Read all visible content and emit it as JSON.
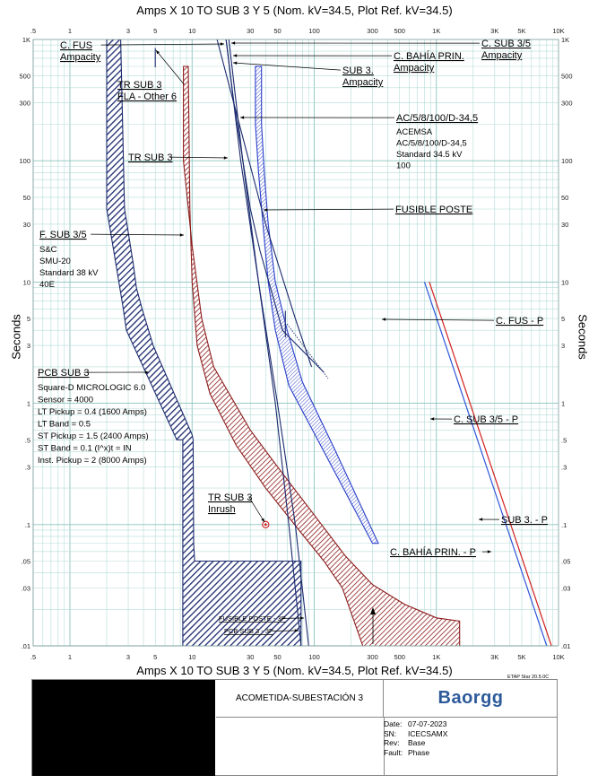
{
  "chart_data": {
    "type": "line",
    "title": "Amps  X  10   TO SUB 3 Y 5 (Nom. kV=34.5, Plot Ref. kV=34.5)",
    "xlabel": "Amps  X  10   TO SUB 3 Y 5 (Nom. kV=34.5, Plot Ref. kV=34.5)",
    "ylabel": "Seconds",
    "xscale": "log",
    "yscale": "log",
    "xlim": [
      0.5,
      10000
    ],
    "ylim": [
      0.01,
      1000
    ],
    "grid": true,
    "x_ticks": [
      {
        "v": 0.5,
        "label": ".5"
      },
      {
        "v": 1,
        "label": "1"
      },
      {
        "v": 3,
        "label": "3"
      },
      {
        "v": 5,
        "label": "5"
      },
      {
        "v": 10,
        "label": "10"
      },
      {
        "v": 30,
        "label": "30"
      },
      {
        "v": 50,
        "label": "50"
      },
      {
        "v": 100,
        "label": "100"
      },
      {
        "v": 300,
        "label": "300"
      },
      {
        "v": 500,
        "label": "500"
      },
      {
        "v": 1000,
        "label": "1K"
      },
      {
        "v": 3000,
        "label": "3K"
      },
      {
        "v": 5000,
        "label": "5K"
      },
      {
        "v": 10000,
        "label": "10K"
      }
    ],
    "y_ticks": [
      {
        "v": 1000,
        "label": "1K"
      },
      {
        "v": 500,
        "label": "500"
      },
      {
        "v": 300,
        "label": "300"
      },
      {
        "v": 100,
        "label": "100"
      },
      {
        "v": 50,
        "label": "50"
      },
      {
        "v": 30,
        "label": "30"
      },
      {
        "v": 10,
        "label": "10"
      },
      {
        "v": 5,
        "label": "5"
      },
      {
        "v": 3,
        "label": "3"
      },
      {
        "v": 1,
        "label": "1"
      },
      {
        "v": 0.5,
        "label": ".5"
      },
      {
        "v": 0.3,
        "label": ".3"
      },
      {
        "v": 0.1,
        "label": ".1"
      },
      {
        "v": 0.05,
        "label": ".05"
      },
      {
        "v": 0.03,
        "label": ".03"
      },
      {
        "v": 0.01,
        "label": ".01"
      }
    ],
    "colors": {
      "grid": "#b4dcd8",
      "navy": "#1b2a6e",
      "blue": "#2a3fc9",
      "maroon": "#8c1c1c",
      "red": "#d42020",
      "phase_blue": "#3056d8"
    },
    "bands": [
      {
        "name": "PCB SUB 3",
        "color": "#1b2a6e",
        "polygon": [
          [
            2.0,
            1000
          ],
          [
            2.0,
            40
          ],
          [
            2.1,
            30
          ],
          [
            2.7,
            6.5
          ],
          [
            2.9,
            4.0
          ],
          [
            7.5,
            0.5
          ],
          [
            8.4,
            0.5
          ],
          [
            8.4,
            0.008
          ],
          [
            78,
            0.008
          ],
          [
            78,
            0.05
          ],
          [
            10.5,
            0.05
          ],
          [
            10.3,
            0.07
          ],
          [
            10.2,
            0.5
          ],
          [
            10,
            0.55
          ],
          [
            4.8,
            3.0
          ],
          [
            3.9,
            6.0
          ],
          [
            3.5,
            9.0
          ],
          [
            3.3,
            14
          ],
          [
            2.8,
            40
          ],
          [
            2.6,
            1000
          ]
        ]
      },
      {
        "name": "F. SUB 3/5",
        "color": "#8c1c1c",
        "polygon": [
          [
            8.5,
            600
          ],
          [
            8.5,
            100
          ],
          [
            10,
            20
          ],
          [
            12,
            5
          ],
          [
            15,
            2.0
          ],
          [
            30,
            0.6
          ],
          [
            50,
            0.3
          ],
          [
            100,
            0.12
          ],
          [
            180,
            0.055
          ],
          [
            300,
            0.032
          ],
          [
            550,
            0.022
          ],
          [
            1000,
            0.017
          ],
          [
            1550,
            0.016
          ],
          [
            1550,
            0.008
          ],
          [
            300,
            0.008
          ],
          [
            250,
            0.01
          ],
          [
            170,
            0.03
          ],
          [
            120,
            0.05
          ],
          [
            75,
            0.09
          ],
          [
            40,
            0.2
          ],
          [
            23,
            0.45
          ],
          [
            14,
            1.2
          ],
          [
            11,
            3
          ],
          [
            10,
            10
          ],
          [
            9.6,
            40
          ],
          [
            9.3,
            600
          ]
        ]
      },
      {
        "name": "FUSIBLE POSTE",
        "color": "#2a3fc9",
        "polygon": [
          [
            33,
            600
          ],
          [
            33,
            200
          ],
          [
            35,
            80
          ],
          [
            38,
            30
          ],
          [
            42,
            10
          ],
          [
            48,
            4
          ],
          [
            62,
            1.4
          ],
          [
            120,
            0.4
          ],
          [
            300,
            0.07
          ],
          [
            335,
            0.07
          ],
          [
            150,
            0.4
          ],
          [
            80,
            1.5
          ],
          [
            60,
            4
          ],
          [
            48,
            10
          ],
          [
            42,
            30
          ],
          [
            39,
            80
          ],
          [
            37,
            200
          ],
          [
            37,
            600
          ]
        ]
      }
    ],
    "curves": [
      {
        "name": "TR SUB 3",
        "color": "#1b2a6e",
        "points": [
          [
            16,
            1000
          ],
          [
            40,
            30
          ],
          [
            70,
            5
          ],
          [
            95,
            2.0
          ]
        ]
      },
      {
        "name": "AC/5/8/100/D-34,5",
        "color": "#1b2a6e",
        "points": [
          [
            19,
            1000
          ],
          [
            22,
            300
          ],
          [
            30,
            40
          ],
          [
            36,
            18
          ],
          [
            55,
            4
          ],
          [
            120,
            1.8
          ]
        ]
      },
      {
        "name": "C. FUS",
        "color": "#1b2a6e",
        "points": [
          [
            19,
            1000
          ],
          [
            25,
            100
          ],
          [
            35,
            10
          ],
          [
            50,
            1
          ],
          [
            70,
            0.1
          ],
          [
            90,
            0.01
          ]
        ]
      },
      {
        "name": "C. BAHÍA PRIN.",
        "color": "#1b2a6e",
        "points": [
          [
            20,
            1000
          ],
          [
            26,
            100
          ],
          [
            35,
            10
          ],
          [
            48,
            1
          ],
          [
            62,
            0.1
          ],
          [
            78,
            0.01
          ]
        ]
      },
      {
        "name": "SUB 3. Ampacity",
        "color": "#1b2a6e",
        "points": [
          [
            58,
            5.8
          ],
          [
            58,
            3.5
          ]
        ]
      },
      {
        "name": "FLA",
        "color": "#1b2a6e",
        "points": [
          [
            5.0,
            850
          ],
          [
            5.0,
            590
          ]
        ]
      }
    ],
    "dashed": [
      {
        "name": "SUB 3 dotted",
        "color": "#1b2a6e",
        "points": [
          [
            60,
            4.5
          ],
          [
            130,
            1.6
          ]
        ]
      }
    ],
    "phase_lines": [
      {
        "name": "C. FUS - P",
        "points": [
          [
            800,
            10
          ],
          [
            8000,
            0.01
          ]
        ]
      },
      {
        "name": "C. SUB 3/5 - P",
        "points": [
          [
            825,
            10
          ],
          [
            8250,
            0.01
          ]
        ]
      },
      {
        "name": "SUB 3. - P",
        "points": [
          [
            850,
            10
          ],
          [
            8500,
            0.01
          ]
        ]
      },
      {
        "name": "C. BAHÍA PRIN. - P",
        "points": [
          [
            875,
            10
          ],
          [
            8750,
            0.01
          ]
        ]
      }
    ],
    "inrush_point": {
      "name": "TR SUB 3 Inrush",
      "x": 40,
      "y": 0.1
    },
    "annotations": [
      {
        "id": "cfus",
        "lines": [
          "C. FUS",
          "Ampacity"
        ],
        "underline": true
      },
      {
        "id": "trsub3fla",
        "lines": [
          "TR SUB 3",
          "FLA - Other 6"
        ],
        "underline": true
      },
      {
        "id": "trsub3",
        "lines": [
          "TR SUB 3"
        ],
        "underline": true
      },
      {
        "id": "fsub35",
        "lines": [
          "F. SUB 3/5"
        ],
        "underline": true
      },
      {
        "id": "fsub35info",
        "lines": [
          "S&C",
          "SMU-20",
          "Standard  38 kV",
          "40E"
        ],
        "underline": false
      },
      {
        "id": "pcbsub3",
        "lines": [
          "PCB SUB 3"
        ],
        "underline": true
      },
      {
        "id": "pcbinfo",
        "lines": [
          "Square-D  MICROLOGIC 6.0",
          "Sensor = 4000",
          "LT Pickup = 0.4 (1600 Amps)",
          "LT Band = 0.5",
          "ST Pickup = 1.5 (2400 Amps)",
          "ST Band = 0.1  (I^x)t = IN",
          "Inst. Pickup = 2 (8000 Amps)"
        ],
        "underline": false
      },
      {
        "id": "inrush",
        "lines": [
          "TR SUB 3",
          "Inrush"
        ],
        "underline": true
      },
      {
        "id": "csub35",
        "lines": [
          "C. SUB 3/5",
          "Ampacity"
        ],
        "underline": true
      },
      {
        "id": "cbahia",
        "lines": [
          "C. BAHÍA PRIN.",
          "Ampacity"
        ],
        "underline": true
      },
      {
        "id": "sub3amp",
        "lines": [
          "SUB 3.",
          "Ampacity"
        ],
        "underline": true
      },
      {
        "id": "acemsa",
        "lines": [
          "AC/5/8/100/D-34,5"
        ],
        "underline": true
      },
      {
        "id": "acemsainfo",
        "lines": [
          "ACEMSA",
          "AC/5/8/100/D-34,5",
          "Standard  34.5 kV",
          "100"
        ],
        "underline": false
      },
      {
        "id": "fusposte",
        "lines": [
          "FUSIBLE POSTE"
        ],
        "underline": true
      },
      {
        "id": "cfusp",
        "lines": [
          "C. FUS - P"
        ],
        "underline": true
      },
      {
        "id": "csub35p",
        "lines": [
          "C. SUB 3/5 - P"
        ],
        "underline": true
      },
      {
        "id": "sub3p",
        "lines": [
          "SUB 3. - P"
        ],
        "underline": true
      },
      {
        "id": "cbahiap",
        "lines": [
          "C. BAHÍA PRIN. - P"
        ],
        "underline": true
      },
      {
        "id": "fuspostemark",
        "lines": [
          "FUSIBLE POSTE - 3P"
        ],
        "underline": true
      },
      {
        "id": "pcbmark",
        "lines": [
          "PCB SUB 3 - 3P"
        ],
        "underline": true
      }
    ]
  },
  "title_block": {
    "etap": "ETAP Star 20.5.0C",
    "project": "ACOMETIDA-SUBESTACIÓN 3",
    "logo": "Baorgg",
    "date_label": "Date:",
    "date": "07-07-2023",
    "sn_label": "SN:",
    "sn": "ICECSAMX",
    "rev_label": "Rev:",
    "rev": "Base",
    "fault_label": "Fault:",
    "fault": "Phase"
  }
}
